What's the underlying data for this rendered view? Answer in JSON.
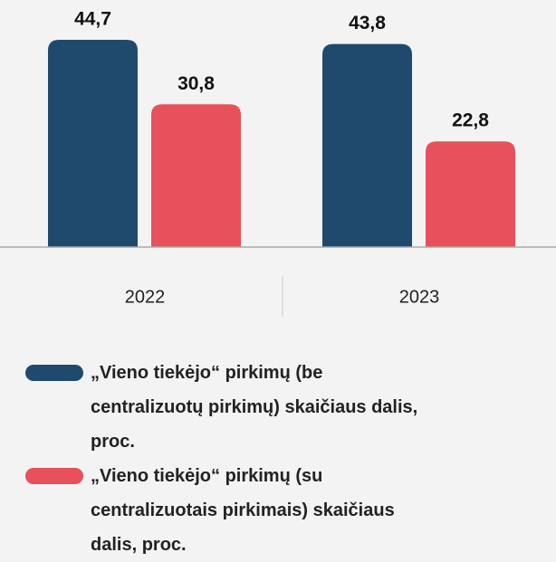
{
  "chart_data": {
    "type": "bar",
    "categories": [
      "2022",
      "2023"
    ],
    "series": [
      {
        "name": "„Vieno tiekėjo“ pirkimų (be centralizuotų pirkimų) skaičiaus dalis, proc.",
        "color": "#1f4a6e",
        "values": [
          44.7,
          43.8
        ],
        "value_labels": [
          "44,7",
          "43,8"
        ]
      },
      {
        "name": "„Vieno tiekėjo“ pirkimų (su centralizuotais pirkimais) skaičiaus dalis, proc.",
        "color": "#e8505b",
        "values": [
          30.8,
          22.8
        ],
        "value_labels": [
          "30,8",
          "22,8"
        ]
      }
    ]
  }
}
